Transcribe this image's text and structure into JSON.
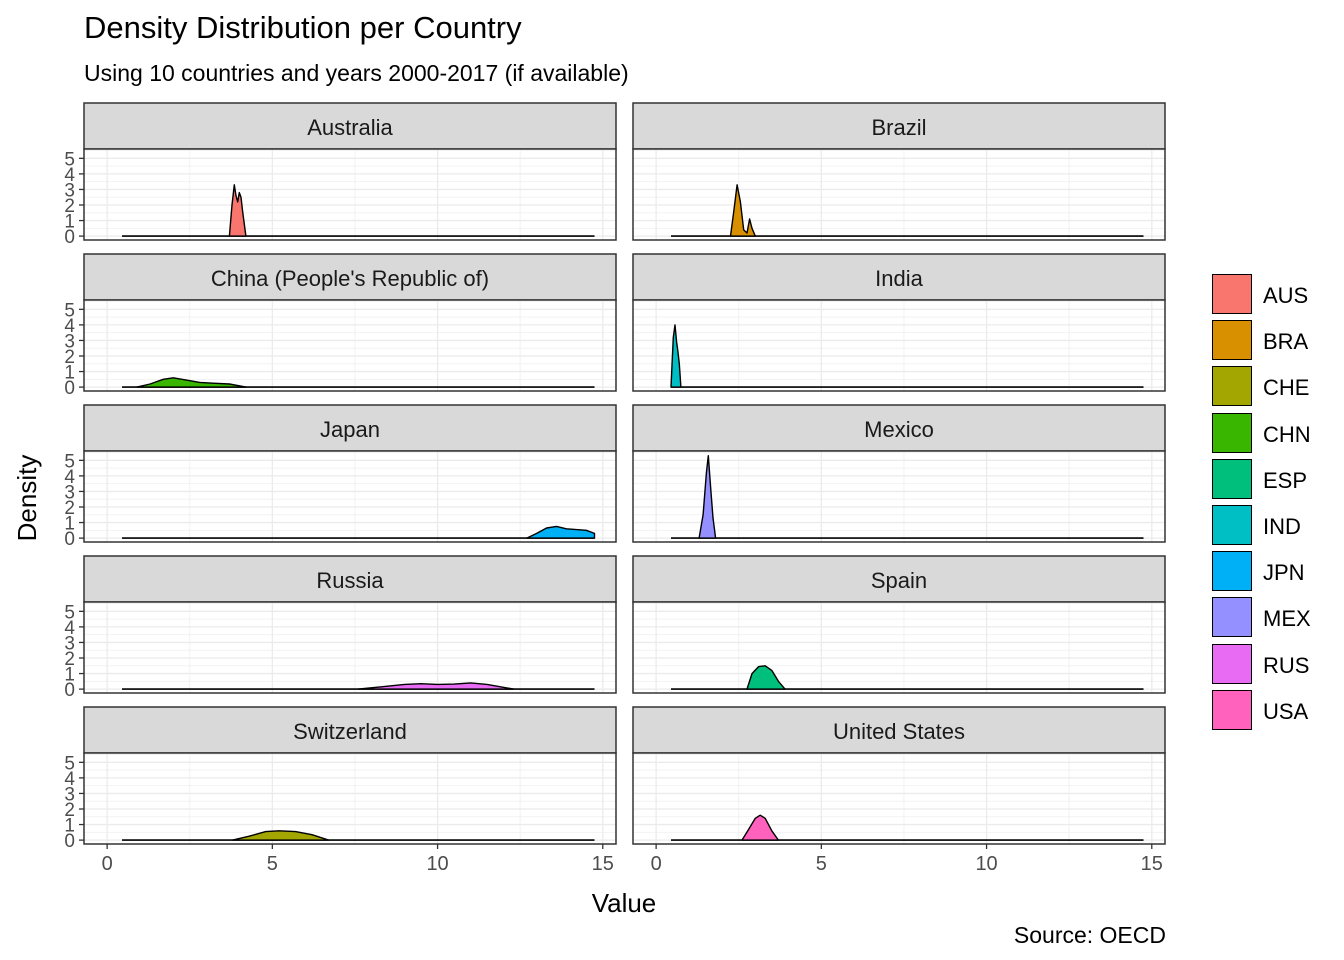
{
  "chart_data": {
    "type": "area",
    "title": "Density Distribution per Country",
    "subtitle": "Using 10 countries and years 2000-2017 (if available)",
    "caption": "Source: OECD",
    "xlabel": "Value",
    "ylabel": "Density",
    "xlim": [
      -0.7,
      15.4
    ],
    "ylim": [
      -0.25,
      5.6
    ],
    "xticks": [
      0,
      5,
      10,
      15
    ],
    "yticks": [
      0,
      1,
      2,
      3,
      4,
      5
    ],
    "grid": true,
    "legend_position": "right",
    "legend": [
      {
        "code": "AUS",
        "color": "#F8766D"
      },
      {
        "code": "BRA",
        "color": "#D89000"
      },
      {
        "code": "CHE",
        "color": "#A3A500"
      },
      {
        "code": "CHN",
        "color": "#39B600"
      },
      {
        "code": "ESP",
        "color": "#00BF7D"
      },
      {
        "code": "IND",
        "color": "#00BFC4"
      },
      {
        "code": "JPN",
        "color": "#00B0F6"
      },
      {
        "code": "MEX",
        "color": "#9590FF"
      },
      {
        "code": "RUS",
        "color": "#E76BF3"
      },
      {
        "code": "USA",
        "color": "#FF62BC"
      }
    ],
    "panels": [
      {
        "name": "Australia",
        "code": "AUS",
        "color": "#F8766D",
        "baseline": [
          0.45,
          14.75
        ],
        "x": [
          3.7,
          3.78,
          3.85,
          3.9,
          3.95,
          4.0,
          4.05,
          4.1,
          4.2
        ],
        "y": [
          0,
          2.0,
          3.3,
          2.6,
          2.2,
          2.8,
          2.5,
          1.6,
          0
        ]
      },
      {
        "name": "Brazil",
        "code": "BRA",
        "color": "#D89000",
        "baseline": [
          0.45,
          14.75
        ],
        "x": [
          2.25,
          2.35,
          2.45,
          2.55,
          2.65,
          2.75,
          2.83,
          2.9,
          3.0
        ],
        "y": [
          0,
          1.6,
          3.3,
          2.2,
          0.4,
          0.2,
          1.1,
          0.5,
          0
        ]
      },
      {
        "name": "China (People's Republic of)",
        "code": "CHN",
        "color": "#39B600",
        "baseline": [
          0.45,
          14.75
        ],
        "x": [
          0.9,
          1.3,
          1.7,
          2.0,
          2.4,
          2.8,
          3.2,
          3.7,
          4.2
        ],
        "y": [
          0,
          0.2,
          0.5,
          0.6,
          0.45,
          0.3,
          0.25,
          0.2,
          0
        ]
      },
      {
        "name": "India",
        "code": "IND",
        "color": "#00BFC4",
        "baseline": [
          0.45,
          14.75
        ],
        "x": [
          0.45,
          0.52,
          0.57,
          0.62,
          0.66,
          0.7,
          0.75
        ],
        "y": [
          0,
          3.2,
          4.0,
          2.9,
          2.3,
          1.5,
          0
        ]
      },
      {
        "name": "Japan",
        "code": "JPN",
        "color": "#00B0F6",
        "baseline": [
          0.45,
          14.75
        ],
        "x": [
          12.7,
          13.0,
          13.3,
          13.6,
          13.9,
          14.2,
          14.5,
          14.75
        ],
        "y": [
          0,
          0.3,
          0.65,
          0.75,
          0.6,
          0.55,
          0.5,
          0.3
        ]
      },
      {
        "name": "Mexico",
        "code": "MEX",
        "color": "#9590FF",
        "baseline": [
          0.45,
          14.75
        ],
        "x": [
          1.3,
          1.42,
          1.52,
          1.58,
          1.65,
          1.72,
          1.8
        ],
        "y": [
          0,
          1.5,
          4.2,
          5.3,
          3.2,
          1.3,
          0
        ]
      },
      {
        "name": "Russia",
        "code": "RUS",
        "color": "#E76BF3",
        "baseline": [
          0.45,
          14.75
        ],
        "x": [
          7.6,
          8.3,
          9.0,
          9.5,
          10.0,
          10.5,
          11.0,
          11.5,
          12.3
        ],
        "y": [
          0,
          0.15,
          0.3,
          0.35,
          0.3,
          0.32,
          0.4,
          0.3,
          0
        ]
      },
      {
        "name": "Spain",
        "code": "ESP",
        "color": "#00BF7D",
        "baseline": [
          0.45,
          14.75
        ],
        "x": [
          2.75,
          2.9,
          3.1,
          3.3,
          3.5,
          3.7,
          3.9
        ],
        "y": [
          0,
          1.0,
          1.45,
          1.5,
          1.2,
          0.5,
          0
        ]
      },
      {
        "name": "Switzerland",
        "code": "CHE",
        "color": "#A3A500",
        "baseline": [
          0.45,
          14.75
        ],
        "x": [
          3.8,
          4.3,
          4.8,
          5.2,
          5.7,
          6.2,
          6.7
        ],
        "y": [
          0,
          0.25,
          0.55,
          0.6,
          0.55,
          0.35,
          0
        ]
      },
      {
        "name": "United States",
        "code": "USA",
        "color": "#FF62BC",
        "baseline": [
          0.45,
          14.75
        ],
        "x": [
          2.6,
          2.8,
          3.0,
          3.15,
          3.3,
          3.5,
          3.7
        ],
        "y": [
          0,
          0.7,
          1.4,
          1.6,
          1.4,
          0.6,
          0
        ]
      }
    ]
  }
}
